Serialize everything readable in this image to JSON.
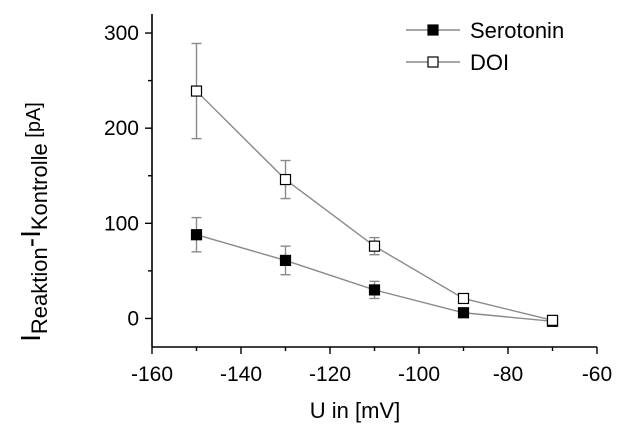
{
  "chart_data": {
    "type": "line",
    "xlabel": "U in [mV]",
    "ylabel": {
      "main": "I",
      "sub1": "Reaktion",
      "mid": "-I",
      "sub2": "Kontrolle",
      "unit": " [pA]"
    },
    "xlim": [
      -160,
      -60
    ],
    "ylim": [
      -30,
      320
    ],
    "xticks": [
      -160,
      -140,
      -120,
      -100,
      -80,
      -60
    ],
    "yticks": [
      0,
      100,
      200,
      300
    ],
    "legend_position": "top-right",
    "grid": false,
    "series": [
      {
        "name": "Serotonin",
        "marker": "filled-square",
        "color": "#000000",
        "x": [
          -150,
          -130,
          -110,
          -90,
          -70
        ],
        "y": [
          88,
          61,
          30,
          6,
          -3
        ],
        "err": [
          18,
          15,
          9,
          4,
          3
        ]
      },
      {
        "name": "DOI",
        "marker": "open-square",
        "color": "#000000",
        "x": [
          -150,
          -130,
          -110,
          -90,
          -70
        ],
        "y": [
          239,
          146,
          76,
          21,
          -2
        ],
        "err": [
          50,
          20,
          9,
          3,
          3
        ]
      }
    ]
  }
}
